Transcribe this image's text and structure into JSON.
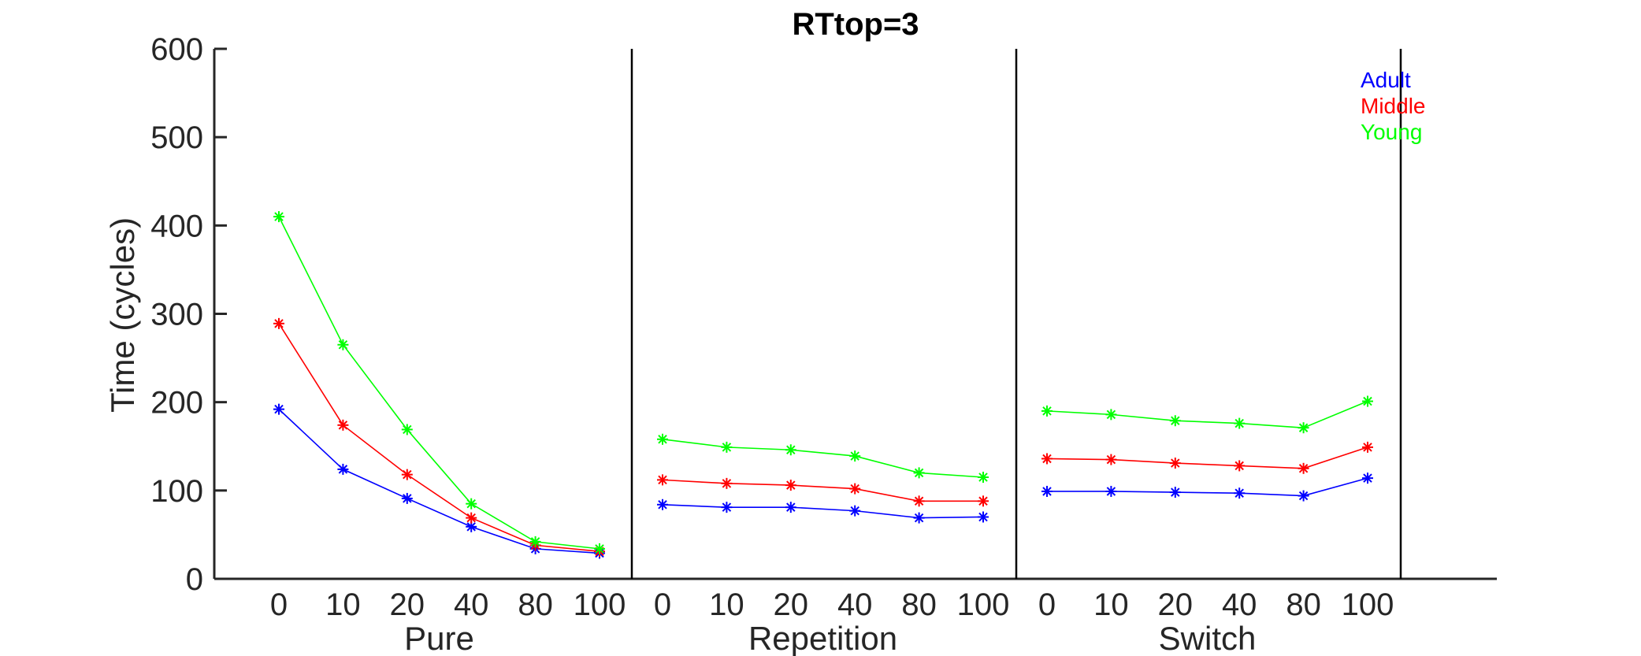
{
  "chart_data": {
    "type": "line",
    "title": "RTtop=3",
    "ylabel": "Time (cycles)",
    "xlabel": "",
    "ylim": [
      0,
      600
    ],
    "yticks": [
      0,
      100,
      200,
      300,
      400,
      500,
      600
    ],
    "xtick_labels": [
      "0",
      "10",
      "20",
      "40",
      "80",
      "100"
    ],
    "panels": [
      "Pure",
      "Repetition",
      "Switch"
    ],
    "grid": false,
    "legend_position": "top-right",
    "marker": "*",
    "series": [
      {
        "name": "Adult",
        "color": "#0000ff",
        "values": [
          [
            192,
            124,
            91,
            59,
            34,
            29
          ],
          [
            84,
            81,
            81,
            77,
            69,
            70
          ],
          [
            99,
            99,
            98,
            97,
            94,
            114
          ]
        ]
      },
      {
        "name": "Middle",
        "color": "#ff0000",
        "values": [
          [
            289,
            174,
            118,
            69,
            38,
            31
          ],
          [
            112,
            108,
            106,
            102,
            88,
            88
          ],
          [
            136,
            135,
            131,
            128,
            125,
            149
          ]
        ]
      },
      {
        "name": "Young",
        "color": "#00ff00",
        "values": [
          [
            410,
            265,
            169,
            85,
            42,
            34
          ],
          [
            158,
            149,
            146,
            139,
            120,
            115
          ],
          [
            190,
            186,
            179,
            176,
            171,
            201
          ]
        ]
      }
    ]
  }
}
